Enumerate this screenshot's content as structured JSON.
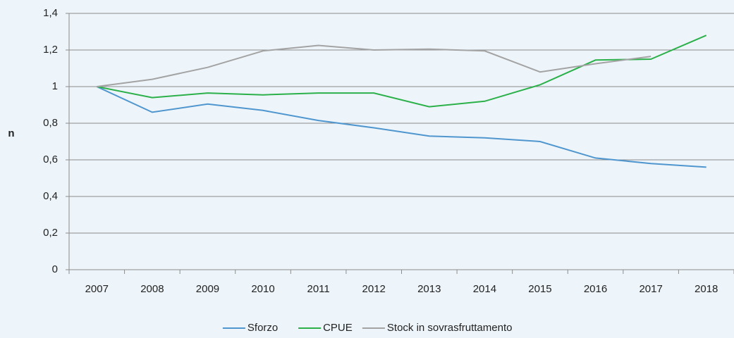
{
  "chart_data": {
    "type": "line",
    "y_label": "n",
    "categories": [
      "2007",
      "2008",
      "2009",
      "2010",
      "2011",
      "2012",
      "2013",
      "2014",
      "2015",
      "2016",
      "2017",
      "2018"
    ],
    "series": [
      {
        "name": "Sforzo",
        "color": "#4f96cf",
        "values": [
          1,
          0.86,
          0.905,
          0.87,
          0.815,
          0.775,
          0.73,
          0.72,
          0.7,
          0.61,
          0.58,
          0.56
        ]
      },
      {
        "name": "CPUE",
        "color": "#2bb04a",
        "values": [
          1,
          0.94,
          0.965,
          0.955,
          0.965,
          0.965,
          0.89,
          0.92,
          1.01,
          1.145,
          1.15,
          1.28
        ]
      },
      {
        "name": "Stock in sovrasfruttamento",
        "color": "#a3a3a3",
        "values": [
          1,
          1.04,
          1.105,
          1.195,
          1.225,
          1.2,
          1.205,
          1.195,
          1.08,
          1.125,
          1.165,
          null
        ]
      }
    ],
    "ylim": [
      0,
      1.4
    ],
    "yticks": [
      0,
      {
        "value": 0.2,
        "label": "0,2"
      },
      {
        "value": 0.4,
        "label": "0,4"
      },
      {
        "value": 0.6,
        "label": "0,6"
      },
      {
        "value": 0.8,
        "label": "0,8"
      },
      1,
      {
        "value": 1.2,
        "label": "1,2"
      },
      {
        "value": 1.4,
        "label": "1,4"
      }
    ],
    "grid": true,
    "legend": "bottom"
  }
}
